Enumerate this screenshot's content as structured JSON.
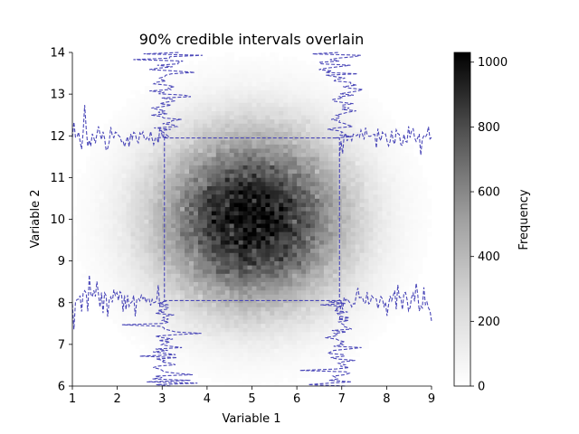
{
  "chart_data": {
    "type": "heatmap",
    "title": "90% credible intervals overlain",
    "xlabel": "Variable 1",
    "ylabel": "Variable 2",
    "xlim": [
      1,
      9
    ],
    "ylim": [
      6,
      14
    ],
    "xticks": [
      "1",
      "2",
      "3",
      "4",
      "5",
      "6",
      "7",
      "8",
      "9"
    ],
    "yticks": [
      "6",
      "7",
      "8",
      "9",
      "10",
      "11",
      "12",
      "13",
      "14"
    ],
    "density": {
      "distribution": "bivariate normal",
      "center": [
        5.0,
        10.0
      ],
      "sd": [
        1.2,
        1.2
      ],
      "peak_frequency": 1030,
      "bins_x": 80,
      "bins_y": 80
    },
    "colormap": "Greys",
    "colorbar": {
      "label": "Frequency",
      "min": 0,
      "max": 1030,
      "ticks": [
        "0",
        "200",
        "400",
        "600",
        "800",
        "1000"
      ]
    },
    "interval_color": "#4a47b8",
    "credible_intervals": {
      "level": "90%",
      "variable_1": [
        3.05,
        6.95
      ],
      "variable_2": [
        8.05,
        11.95
      ]
    },
    "marginal_traces": [
      {
        "name": "upper-left",
        "axis": "vertical",
        "base": 3.05,
        "range": [
          11.95,
          14
        ],
        "direction": "left"
      },
      {
        "name": "upper-right",
        "axis": "vertical",
        "base": 6.95,
        "range": [
          11.95,
          14
        ],
        "direction": "right"
      },
      {
        "name": "lower-left",
        "axis": "vertical",
        "base": 3.05,
        "range": [
          6,
          8.05
        ],
        "direction": "left"
      },
      {
        "name": "lower-right",
        "axis": "vertical",
        "base": 6.95,
        "range": [
          6,
          8.05
        ],
        "direction": "right"
      },
      {
        "name": "left-top",
        "axis": "horizontal",
        "base": 11.95,
        "range": [
          1,
          3.05
        ],
        "direction": "down"
      },
      {
        "name": "right-top",
        "axis": "horizontal",
        "base": 11.95,
        "range": [
          6.95,
          9
        ],
        "direction": "down"
      },
      {
        "name": "left-bottom",
        "axis": "horizontal",
        "base": 8.05,
        "range": [
          1,
          3.05
        ],
        "direction": "up"
      },
      {
        "name": "right-bottom",
        "axis": "horizontal",
        "base": 8.05,
        "range": [
          6.95,
          9
        ],
        "direction": "up"
      }
    ]
  }
}
